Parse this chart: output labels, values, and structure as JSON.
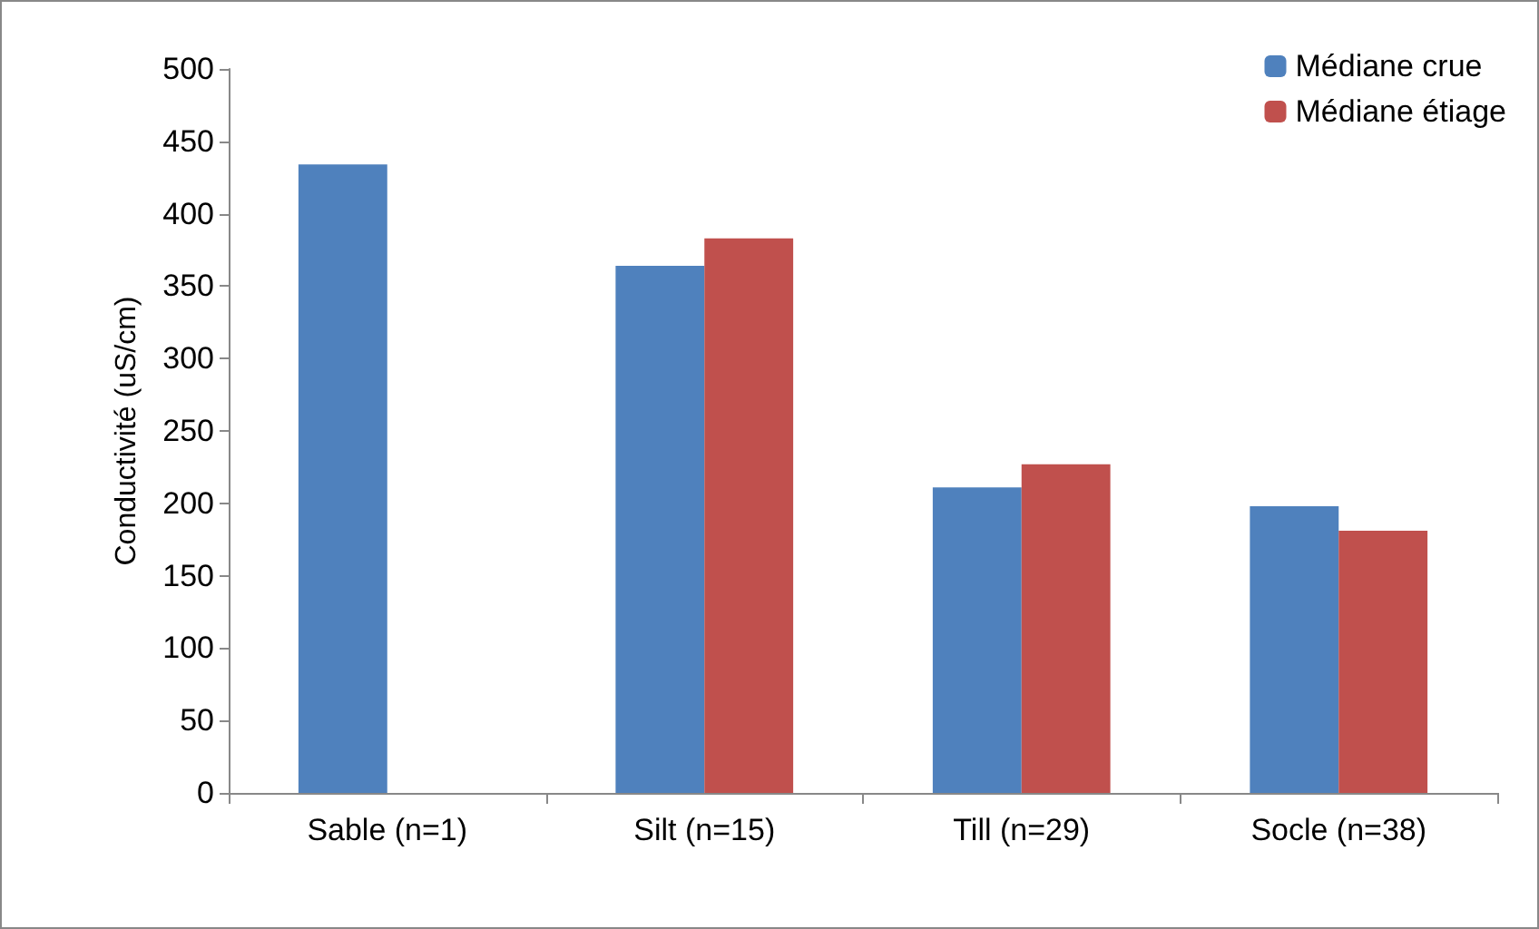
{
  "chart_data": {
    "type": "bar",
    "ylabel": "Conductivité (uS/cm)",
    "categories": [
      "Sable (n=1)",
      "Silt (n=15)",
      "Till (n=29)",
      "Socle (n=38)"
    ],
    "series": [
      {
        "name": "Médiane crue",
        "color": "#4f81bd",
        "values": [
          434,
          364,
          211,
          198
        ]
      },
      {
        "name": "Médiane étiage",
        "color": "#c0504d",
        "values": [
          null,
          383,
          227,
          181
        ]
      }
    ],
    "ylim": [
      0,
      500
    ],
    "yticks": [
      0,
      50,
      100,
      150,
      200,
      250,
      300,
      350,
      400,
      450,
      500
    ],
    "grid": false,
    "legend": "top right"
  }
}
